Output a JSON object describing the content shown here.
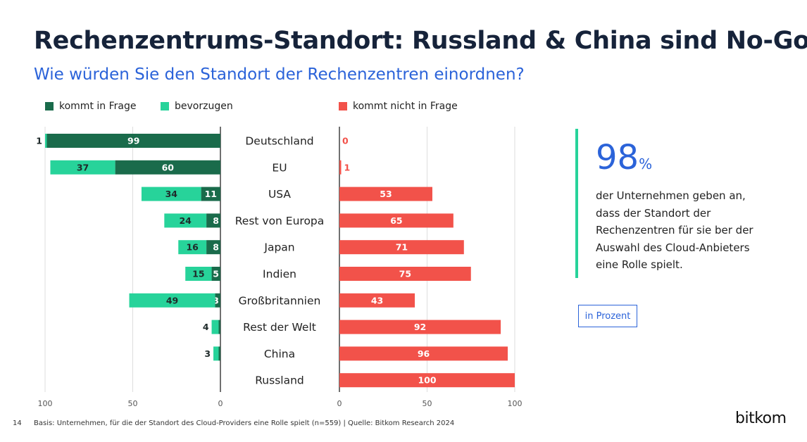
{
  "header": {
    "title": "Rechenzentrums-Standort: Russland & China sind No-Gos",
    "subtitle": "Wie würden Sie den Standort der Rechenzentren einordnen?"
  },
  "colors": {
    "kommt_in_frage": "#1a6b4b",
    "bevorzugen": "#27d39a",
    "kommt_nicht_in_frage": "#f2524a",
    "accent_blue": "#2b63d9"
  },
  "chart_data": {
    "type": "bar",
    "orientation": "horizontal",
    "categories": [
      "Deutschland",
      "EU",
      "USA",
      "Rest von Europa",
      "Japan",
      "Indien",
      "Großbritannien",
      "Rest der Welt",
      "China",
      "Russland"
    ],
    "series": [
      {
        "name": "kommt in Frage",
        "values": [
          99,
          60,
          11,
          8,
          8,
          5,
          3,
          1,
          1,
          0
        ]
      },
      {
        "name": "bevorzugen",
        "values": [
          1,
          37,
          34,
          24,
          16,
          15,
          49,
          4,
          3,
          0
        ]
      },
      {
        "name": "kommt nicht in Frage",
        "values": [
          0,
          1,
          53,
          65,
          71,
          75,
          43,
          92,
          96,
          100
        ]
      }
    ],
    "left_axis": {
      "ticks": [
        "100",
        "50",
        "0"
      ],
      "range": [
        100,
        0
      ]
    },
    "right_axis": {
      "ticks": [
        "0",
        "50",
        "100"
      ],
      "range": [
        0,
        100
      ]
    }
  },
  "callout": {
    "number": "98",
    "unit": "%",
    "text": "der Unternehmen geben an, dass der Standort der Rechenzentren für sie ber der Auswahl des Cloud-Anbieters eine Rolle spielt."
  },
  "unit_label": "in Prozent",
  "footer": {
    "page": "14",
    "note": "Basis: Unternehmen, für die der Standort des Cloud-Providers eine Rolle spielt (n=559) | Quelle: Bitkom Research 2024",
    "logo": "bitkom"
  }
}
